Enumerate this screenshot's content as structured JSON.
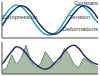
{
  "chart_data": [
    {
      "type": "line",
      "tick_labels": false,
      "x": [
        0,
        1,
        2,
        3,
        4,
        5,
        6,
        7,
        8,
        9,
        10,
        11,
        12,
        13,
        14,
        15,
        16,
        17,
        18,
        19,
        20
      ],
      "xlim": [
        0,
        20
      ],
      "ylim": [
        -1.2,
        1.2
      ],
      "series": [
        {
          "type": "line",
          "color": "#2aa8b8",
          "values": [
            0,
            0.5,
            0.85,
            1,
            0.9,
            0.6,
            0.2,
            -0.3,
            -0.7,
            -0.95,
            -1,
            -0.9,
            -0.6,
            -0.1,
            0.4,
            0.8,
            1,
            0.9,
            0.6,
            0.2,
            -0.2
          ]
        },
        {
          "type": "line",
          "color": "#1f2f6e",
          "values": [
            -0.4,
            0.1,
            0.5,
            0.8,
            0.95,
            0.85,
            0.55,
            0.1,
            -0.35,
            -0.7,
            -0.9,
            -0.95,
            -0.8,
            -0.45,
            0,
            0.45,
            0.8,
            0.95,
            0.85,
            0.55,
            0.1
          ]
        }
      ],
      "annotations": [
        {
          "text": "Constant"
        },
        {
          "text": "Tension"
        },
        {
          "text": "Compression"
        },
        {
          "text": "Deformations"
        }
      ]
    },
    {
      "type": "area",
      "tick_labels": false,
      "x": [
        0,
        1,
        2,
        3,
        4,
        5,
        6,
        7,
        8,
        9,
        10,
        11,
        12,
        13,
        14,
        15,
        16,
        17,
        18,
        19,
        20
      ],
      "xlim": [
        0,
        20
      ],
      "ylim": [
        0,
        1
      ],
      "series": [
        {
          "type": "area",
          "color": "#9fb59a",
          "values": [
            0.1,
            0.2,
            0.6,
            0.3,
            0.5,
            0.9,
            0.4,
            0.2,
            0.3,
            0.7,
            0.5,
            0.3,
            0.4,
            0.8,
            0.6,
            0.3,
            0.2,
            0.5,
            0.4,
            0.3,
            0.2
          ]
        },
        {
          "type": "line",
          "color": "#1f2f6e",
          "values": [
            0.3,
            0.5,
            0.7,
            0.85,
            0.8,
            0.65,
            0.45,
            0.3,
            0.2,
            0.15,
            0.2,
            0.35,
            0.5,
            0.7,
            0.85,
            0.9,
            0.8,
            0.6,
            0.45,
            0.35,
            0.3
          ]
        }
      ],
      "annotations": []
    }
  ]
}
